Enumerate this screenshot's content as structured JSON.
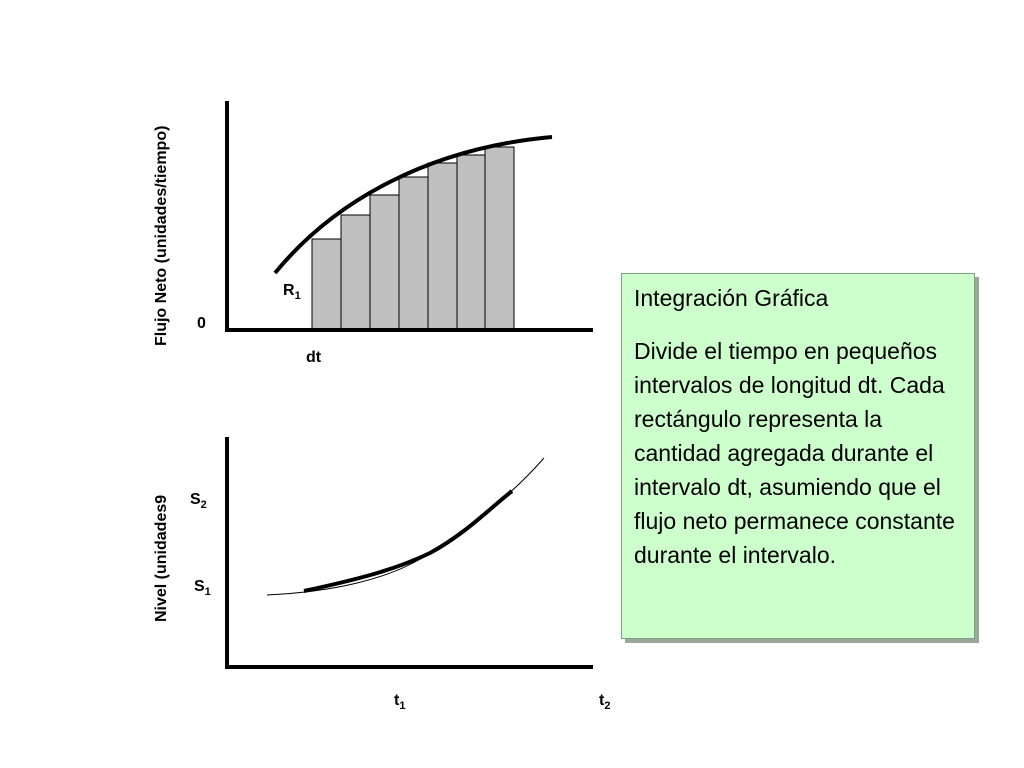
{
  "top_chart": {
    "ylabel": "Flujo Neto (unidades/tiempo)",
    "zero_label": "0",
    "curve_label": {
      "main": "R",
      "sub": "1"
    },
    "dt_label": "dt"
  },
  "bottom_chart": {
    "ylabel": "Nivel (unidades9",
    "s2_label": {
      "main": "S",
      "sub": "2"
    },
    "s1_label": {
      "main": "S",
      "sub": "1"
    },
    "t1_label": {
      "main": "t",
      "sub": "1"
    },
    "t2_label": {
      "main": "t",
      "sub": "2"
    }
  },
  "note": {
    "title": "Integración Gráfica",
    "body": "Divide el tiempo en pequeños intervalos de longitud dt. Cada rectángulo representa la cantidad agregada durante el intervalo dt, asumiendo que el flujo neto permanece constante durante el intervalo."
  },
  "colors": {
    "bars": "#c0c0c0",
    "note_bg": "#ccffcc"
  }
}
